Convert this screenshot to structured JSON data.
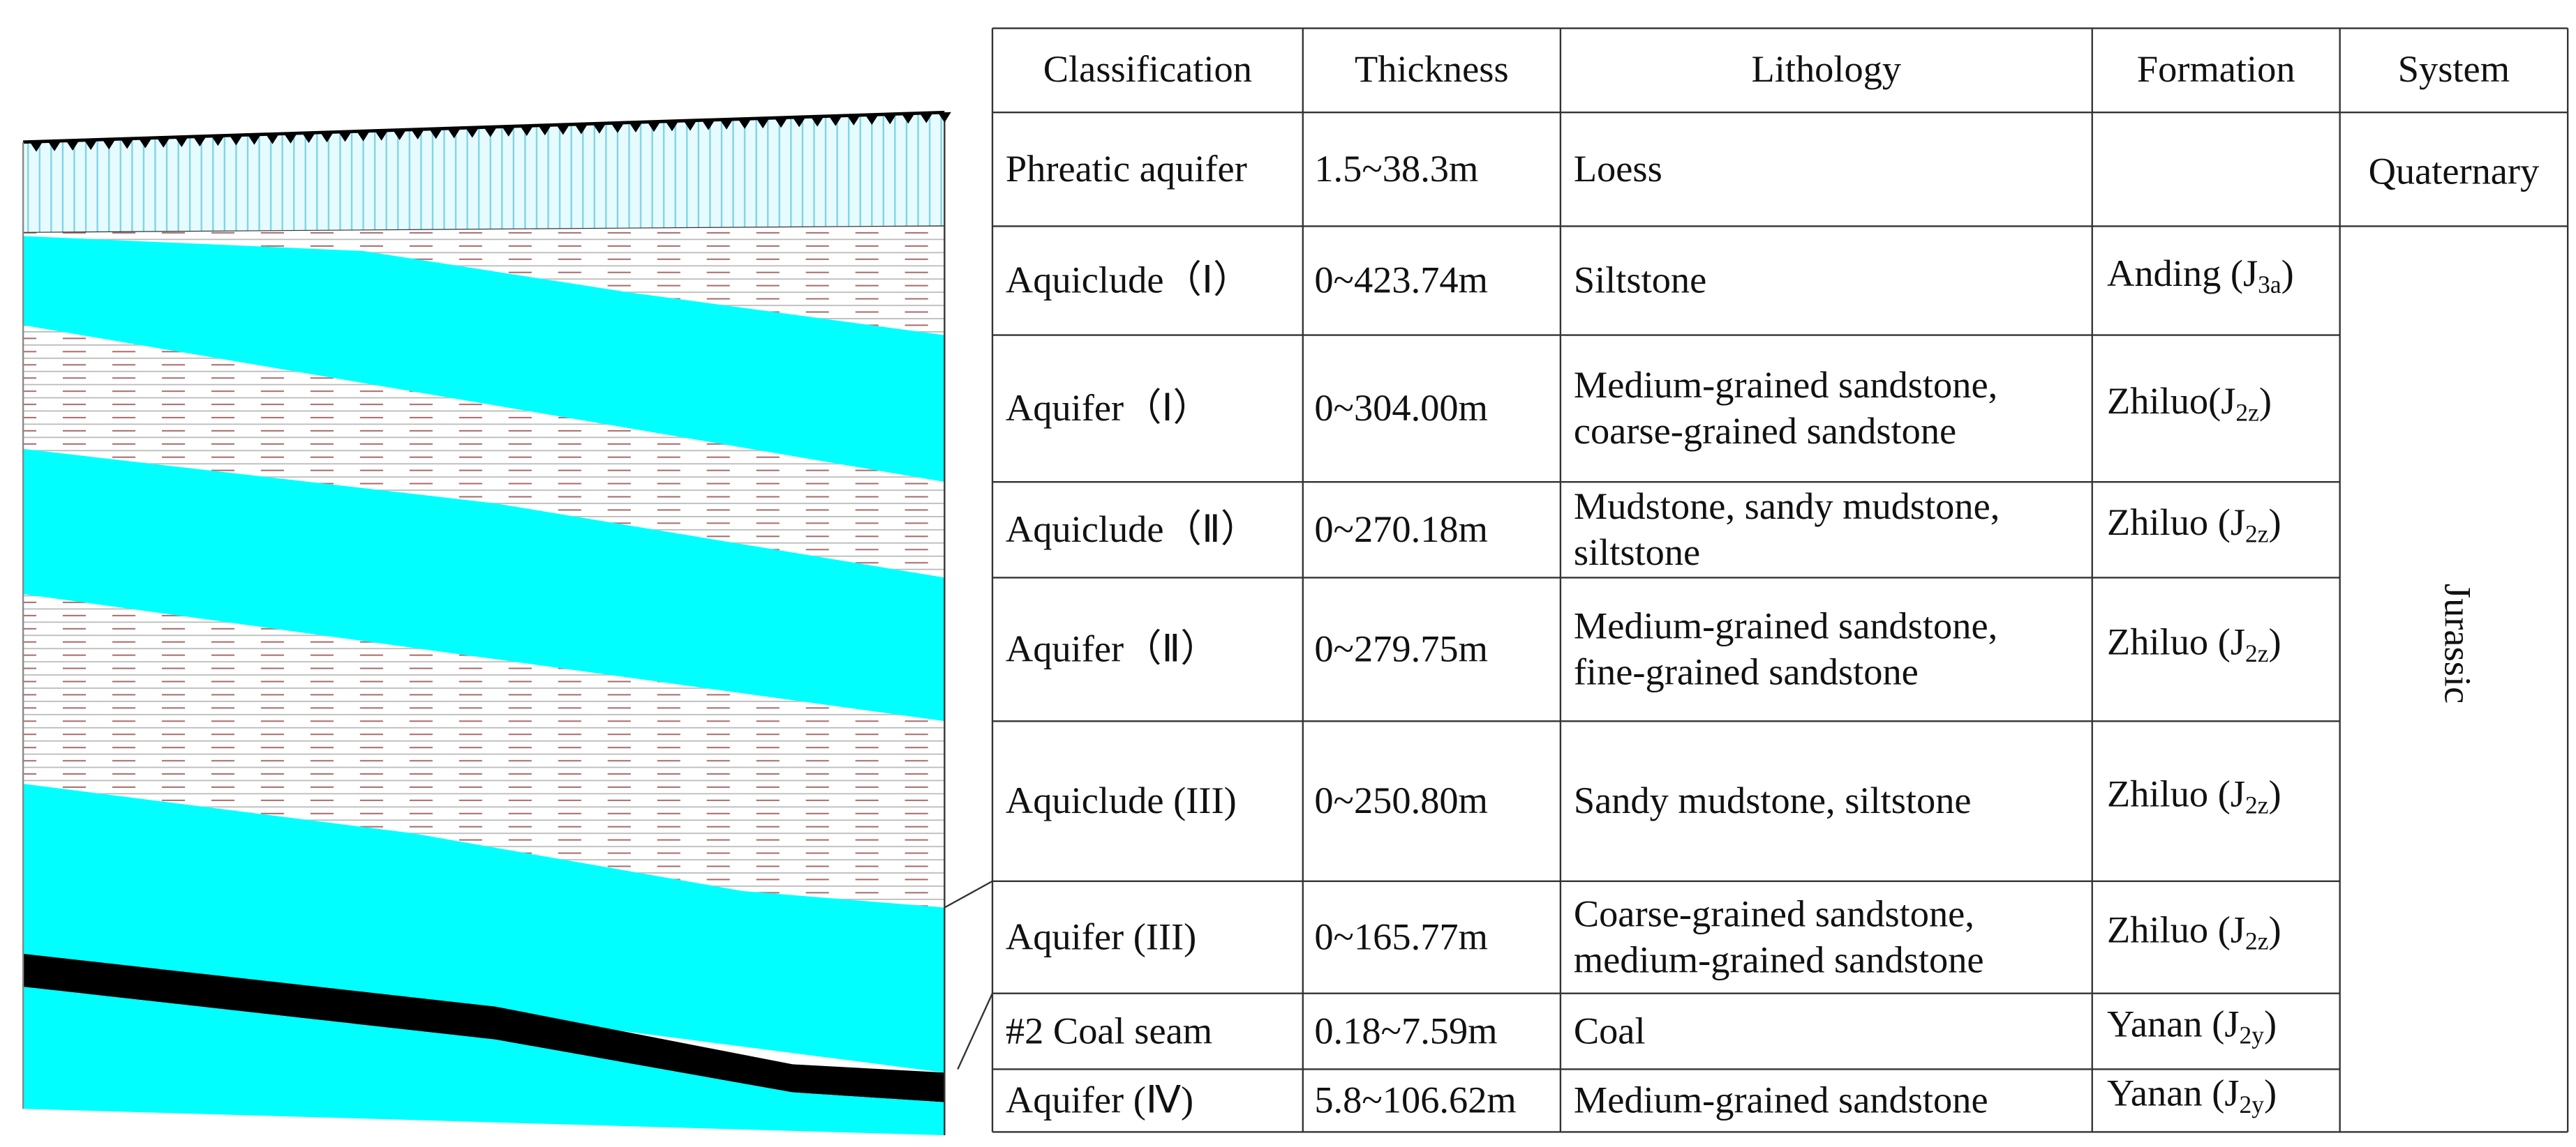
{
  "table": {
    "header": [
      "Classification",
      "Thickness",
      "Lithology",
      "Formation",
      "System"
    ],
    "rows": [
      {
        "classification": "Phreatic aquifer",
        "thickness": "1.5~38.3m",
        "lithology": [
          "Loess"
        ]
      },
      {
        "classification": "Aquiclude（Ⅰ）",
        "thickness": "0~423.74m",
        "lithology": [
          "Siltstone"
        ],
        "formation": {
          "main": "Anding (J",
          "sub": "3a",
          "end": ")"
        }
      },
      {
        "classification": "Aquifer（Ⅰ）",
        "thickness": "0~304.00m",
        "lithology": [
          "Medium-grained  sandstone,",
          "coarse-grained sandstone"
        ],
        "formation": {
          "main": "Zhiluo(J",
          "sub": "2z",
          "end": ")"
        }
      },
      {
        "classification": "Aquiclude（Ⅱ）",
        "thickness": "0~270.18m",
        "lithology": [
          "Mudstone, sandy mudstone,",
          "siltstone"
        ],
        "formation": {
          "main": "Zhiluo (J",
          "sub": "2z",
          "end": ")"
        }
      },
      {
        "classification": "Aquifer（Ⅱ）",
        "thickness": "0~279.75m",
        "lithology": [
          "Medium-grained sandstone,",
          "fine-grained sandstone"
        ],
        "formation": {
          "main": "Zhiluo (J",
          "sub": "2z",
          "end": ")"
        }
      },
      {
        "classification": "Aquiclude (III)",
        "thickness": "0~250.80m",
        "lithology": [
          "Sandy mudstone, siltstone"
        ],
        "formation": {
          "main": "Zhiluo (J",
          "sub": "2z",
          "end": ")"
        }
      },
      {
        "classification": "Aquifer (III)",
        "thickness": "0~165.77m",
        "lithology": [
          "Coarse-grained sandstone,",
          "medium-grained sandstone"
        ],
        "formation": {
          "main": "Zhiluo (J",
          "sub": "2z",
          "end": ")"
        }
      },
      {
        "classification": "#2 Coal seam",
        "thickness": "0.18~7.59m",
        "lithology": [
          "Coal"
        ],
        "formation": {
          "main": "Yanan (J",
          "sub": "2y",
          "end": ")"
        }
      },
      {
        "classification": "Aquifer (Ⅳ)",
        "thickness": "5.8~106.62m",
        "lithology": [
          "Medium-grained sandstone"
        ],
        "formation": {
          "main": "Yanan (J",
          "sub": "2y",
          "end": ")"
        }
      }
    ],
    "systems": [
      "Quaternary",
      "Jurassic"
    ]
  }
}
